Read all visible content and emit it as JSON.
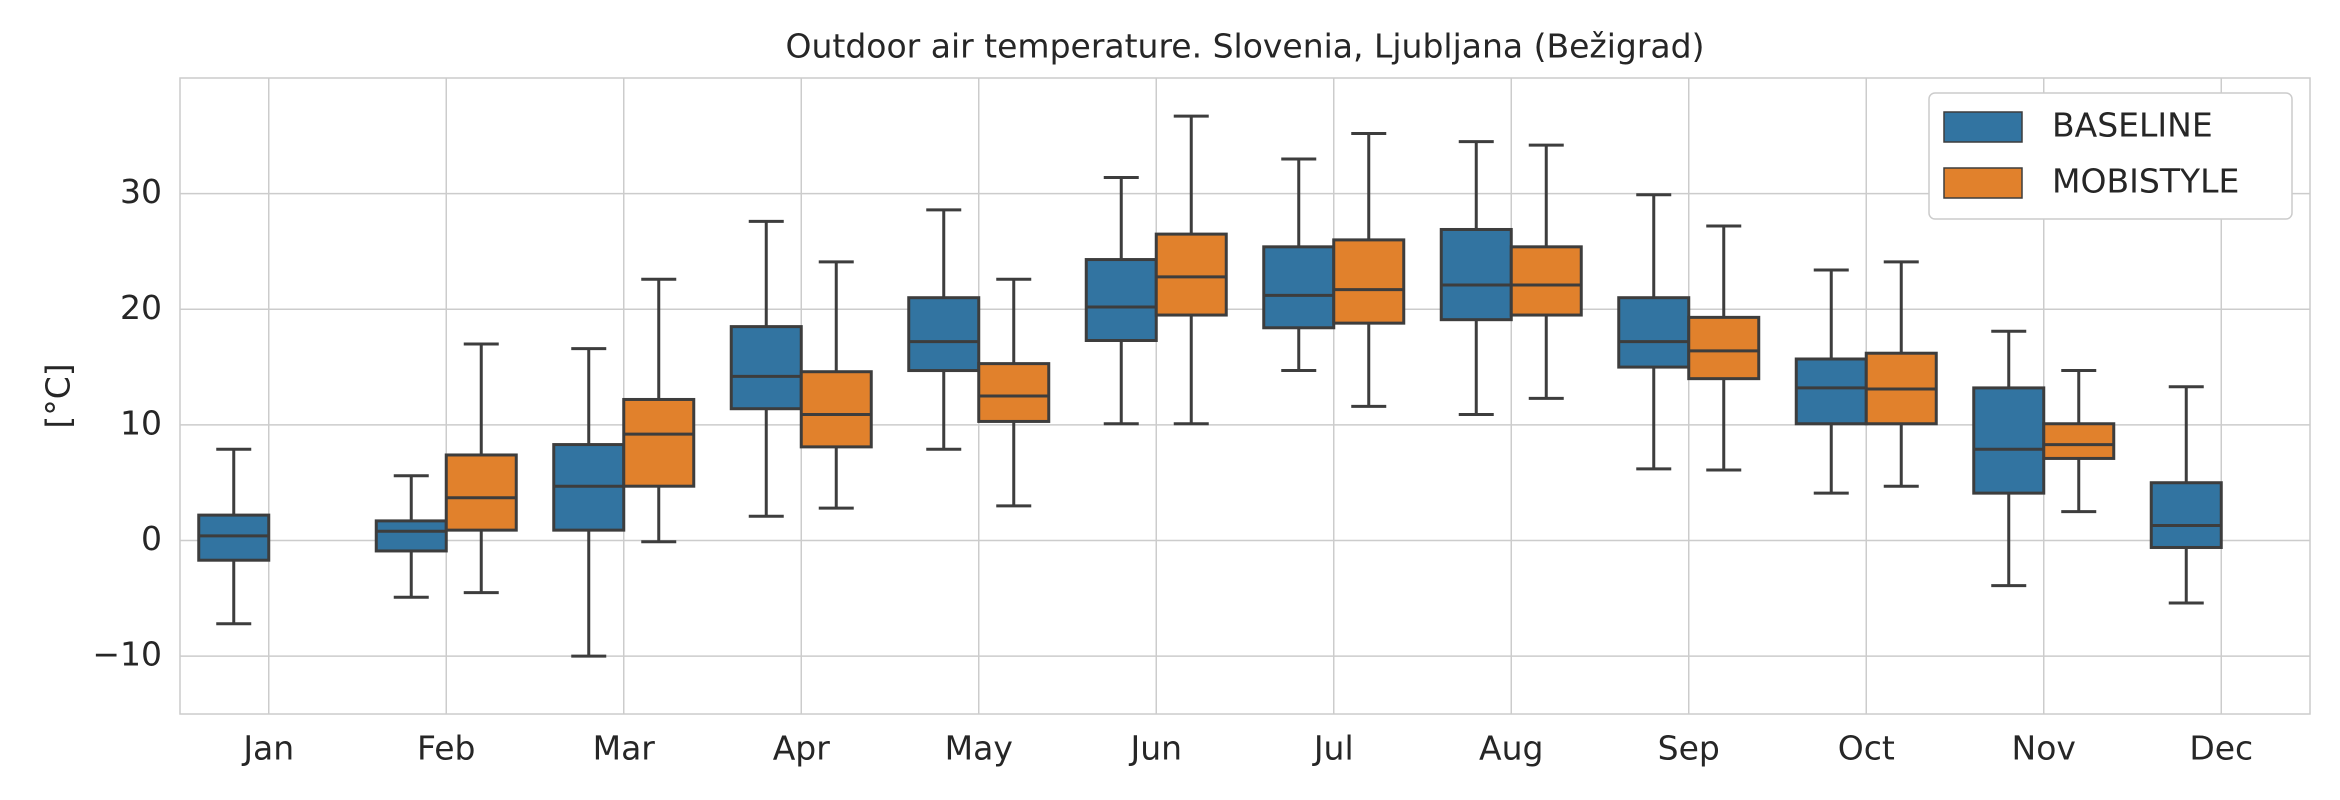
{
  "chart_data": {
    "type": "box",
    "title": "Outdoor air temperature. Slovenia, Ljubljana (Bežigrad)",
    "ylabel": "[°C]",
    "categories": [
      "Jan",
      "Feb",
      "Mar",
      "Apr",
      "May",
      "Jun",
      "Jul",
      "Aug",
      "Sep",
      "Oct",
      "Nov",
      "Dec"
    ],
    "ylim": [
      -15,
      40
    ],
    "yticks": [
      {
        "value": -10,
        "label": "−10"
      },
      0,
      10,
      20,
      30
    ],
    "grid": true,
    "legend": "upper right",
    "series": [
      {
        "name": "BASELINE",
        "color": "#3274a1",
        "whislo": [
          -7.2,
          -4.9,
          -10,
          2.1,
          7.9,
          10.1,
          14.7,
          10.9,
          6.2,
          4.1,
          -3.9,
          -5.4
        ],
        "q1": [
          -1.7,
          -0.9,
          0.9,
          11.4,
          14.7,
          17.3,
          18.4,
          19.1,
          15,
          10.1,
          4.1,
          -0.6
        ],
        "med": [
          0.4,
          0.8,
          4.7,
          14.2,
          17.2,
          20.2,
          21.2,
          22.1,
          17.2,
          13.2,
          7.9,
          1.3
        ],
        "q3": [
          2.2,
          1.7,
          8.3,
          18.5,
          21,
          24.3,
          25.4,
          26.9,
          21,
          15.7,
          13.2,
          5
        ],
        "whishi": [
          7.9,
          5.6,
          16.6,
          27.6,
          28.6,
          31.4,
          33,
          34.5,
          29.9,
          23.4,
          18.1,
          13.3
        ]
      },
      {
        "name": "MOBISTYLE",
        "color": "#e1812c",
        "whislo": [
          null,
          -4.5,
          -0.1,
          2.8,
          3,
          10.1,
          11.6,
          12.3,
          6.1,
          4.7,
          2.5,
          null
        ],
        "q1": [
          null,
          0.9,
          4.7,
          8.1,
          10.3,
          19.5,
          18.8,
          19.5,
          14,
          10.1,
          7.1,
          null
        ],
        "med": [
          null,
          3.7,
          9.2,
          10.9,
          12.5,
          22.8,
          21.7,
          22.1,
          16.4,
          13.1,
          8.3,
          null
        ],
        "q3": [
          null,
          7.4,
          12.2,
          14.6,
          15.3,
          26.5,
          26,
          25.4,
          19.3,
          16.2,
          10.1,
          null
        ],
        "whishi": [
          null,
          17,
          22.6,
          24.1,
          22.6,
          36.7,
          35.2,
          34.2,
          27.2,
          24.1,
          14.7,
          null
        ]
      }
    ]
  }
}
